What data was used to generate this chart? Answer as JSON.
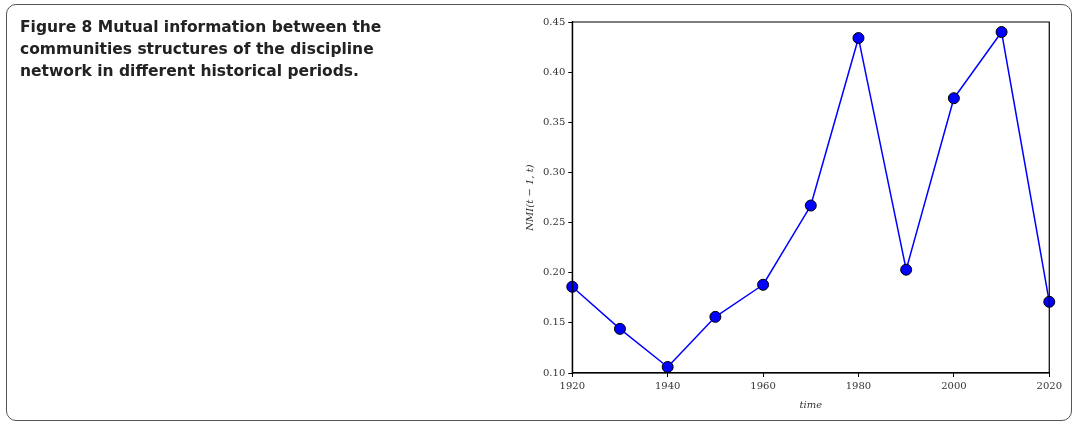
{
  "chart_data": {
    "type": "line",
    "title": "Figure 8  Mutual information between the communities structures of the discipline network in different historical periods.",
    "xlabel": "time",
    "ylabel": "NMI(t − 1, t)",
    "x": [
      1920,
      1930,
      1940,
      1950,
      1960,
      1970,
      1980,
      1990,
      2000,
      2010,
      2020
    ],
    "series": [
      {
        "color": "#0000ff",
        "values": [
          0.186,
          0.144,
          0.106,
          0.156,
          0.188,
          0.267,
          0.434,
          0.203,
          0.374,
          0.44,
          0.171
        ]
      }
    ],
    "xlim": [
      1920,
      2020
    ],
    "xticks": [
      1920,
      1940,
      1960,
      1980,
      2000,
      2020
    ],
    "ylim": [
      0.1,
      0.45
    ],
    "yticks": [
      {
        "value": 0.1,
        "label": "0.10"
      },
      {
        "value": 0.15,
        "label": "0.15"
      },
      {
        "value": 0.2,
        "label": "0.20"
      },
      {
        "value": 0.25,
        "label": "0.25"
      },
      {
        "value": 0.3,
        "label": "0.30"
      },
      {
        "value": 0.35,
        "label": "0.35"
      },
      {
        "value": 0.4,
        "label": "0.40"
      },
      {
        "value": 0.45,
        "label": "0.45"
      }
    ],
    "grid": false,
    "legend": false,
    "marker": "circle",
    "line_style": "solid"
  }
}
